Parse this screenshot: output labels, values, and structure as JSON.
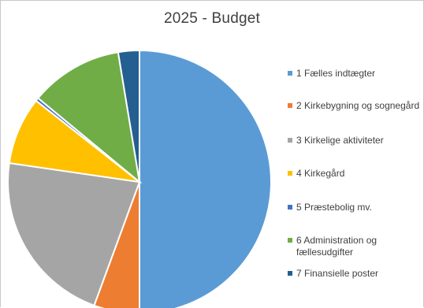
{
  "chart_data": {
    "type": "pie",
    "title": "2025 - Budget",
    "legend_position": "right",
    "slices": [
      {
        "label": "1 Fælles indtægter",
        "value": 50.0,
        "color": "#5B9BD5"
      },
      {
        "label": "2 Kirkebygning og sognegård",
        "value": 5.6,
        "color": "#ED7D31"
      },
      {
        "label": "3 Kirkelige aktiviteter",
        "value": 21.7,
        "color": "#A5A5A5"
      },
      {
        "label": "4 Kirkegård",
        "value": 8.3,
        "color": "#FFC000"
      },
      {
        "label": "5 Præstebolig mv.",
        "value": 0.4,
        "color": "#4472C4"
      },
      {
        "label": "6 Administration og fællesudgifter",
        "value": 11.4,
        "color": "#70AD47"
      },
      {
        "label": "7 Finansielle poster",
        "value": 2.6,
        "color": "#255E91"
      }
    ]
  }
}
